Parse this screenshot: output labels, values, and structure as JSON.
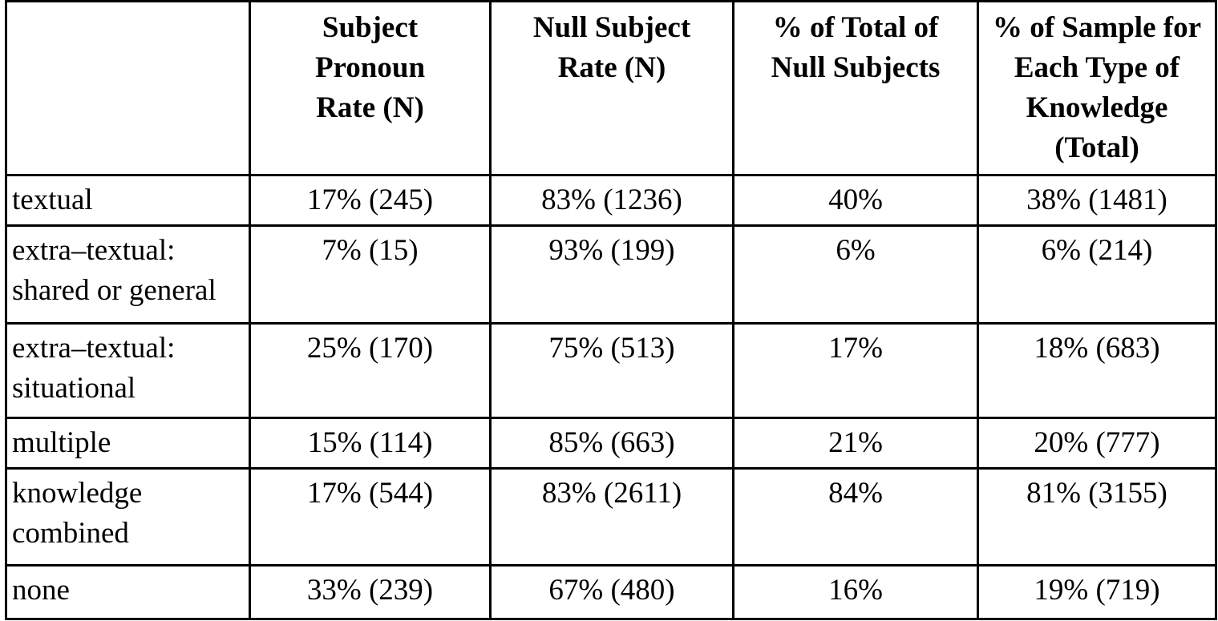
{
  "colors": {
    "background": "#ffffff",
    "border": "#000000",
    "text": "#000000"
  },
  "table": {
    "columns": [
      "",
      "Subject Pronoun Rate (N)",
      "Null Subject Rate (N)",
      "% of Total of Null Subjects",
      "% of Sample for Each Type of Knowledge (Total)"
    ],
    "header_lines": [
      [],
      [
        "Subject",
        "Pronoun",
        "Rate (N)"
      ],
      [
        "Null Subject",
        "Rate (N)"
      ],
      [
        "% of Total of",
        "Null Subjects"
      ],
      [
        "% of Sample for",
        "Each Type of",
        "Knowledge",
        "(Total)"
      ]
    ],
    "rows": [
      {
        "label": "textual",
        "label_lines": [
          "textual"
        ],
        "values": [
          "17% (245)",
          "83% (1236)",
          "40%",
          "38% (1481)"
        ]
      },
      {
        "label": "extra–textual: shared or general",
        "label_lines": [
          "extra–textual:",
          "shared or general"
        ],
        "values": [
          "7% (15)",
          "93% (199)",
          "6%",
          "6% (214)"
        ]
      },
      {
        "label": "extra–textual: situational",
        "label_lines": [
          "extra–textual:",
          "situational"
        ],
        "values": [
          "25% (170)",
          "75% (513)",
          "17%",
          "18% (683)"
        ]
      },
      {
        "label": "multiple",
        "label_lines": [
          "multiple"
        ],
        "values": [
          "15% (114)",
          "85% (663)",
          "21%",
          "20% (777)"
        ]
      },
      {
        "label": "knowledge combined",
        "label_lines": [
          "knowledge",
          "combined"
        ],
        "values": [
          "17% (544)",
          "83% (2611)",
          "84%",
          "81% (3155)"
        ]
      },
      {
        "label": "none",
        "label_lines": [
          "none"
        ],
        "values": [
          "33% (239)",
          "67% (480)",
          "16%",
          "19% (719)"
        ]
      }
    ]
  }
}
